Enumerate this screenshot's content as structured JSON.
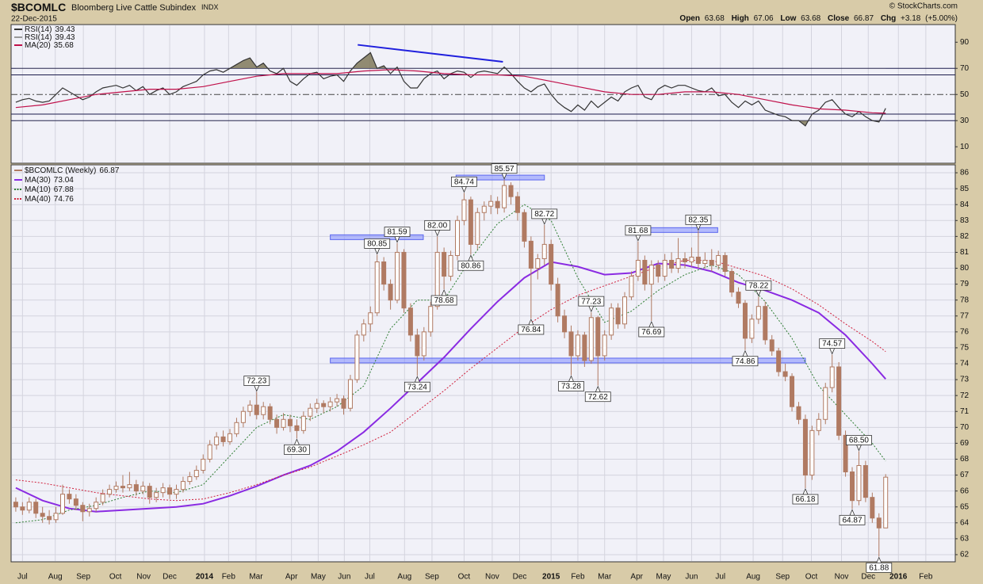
{
  "chart_data": {
    "type": "candlestick",
    "symbol": "$BCOMLC",
    "title": "Bloomberg Live Cattle Subindex",
    "exchange": "INDX",
    "date": "22-Dec-2015",
    "credit": "© StockCharts.com",
    "quote_labels": [
      "Open",
      "High",
      "Low",
      "Close",
      "Chg"
    ],
    "change": {
      "value": 3.18,
      "label": "+3.18"
    },
    "change_pct": {
      "value": 5.0,
      "label": "(+5.00%)"
    },
    "name": "$BCOMLC (Weekly)",
    "color": "#b07a62",
    "xlim": [
      -0.7,
      140.4
    ],
    "xticks": [
      {
        "value": 1,
        "label": "Jul"
      },
      {
        "value": 5.9,
        "label": "Aug"
      },
      {
        "value": 10.1,
        "label": "Sep"
      },
      {
        "value": 14.9,
        "label": "Oct"
      },
      {
        "value": 19.1,
        "label": "Nov"
      },
      {
        "value": 23,
        "label": "Dec"
      },
      {
        "value": 28.2,
        "label": "2014"
      },
      {
        "value": 31.8,
        "label": "Feb"
      },
      {
        "value": 35.9,
        "label": "Mar"
      },
      {
        "value": 41.2,
        "label": "Apr"
      },
      {
        "value": 45.2,
        "label": "May"
      },
      {
        "value": 49.1,
        "label": "Jun"
      },
      {
        "value": 52.9,
        "label": "Jul"
      },
      {
        "value": 58.1,
        "label": "Aug"
      },
      {
        "value": 62.2,
        "label": "Sep"
      },
      {
        "value": 67,
        "label": "Oct"
      },
      {
        "value": 71.2,
        "label": "Nov"
      },
      {
        "value": 75.3,
        "label": "Dec"
      },
      {
        "value": 80,
        "label": "2015"
      },
      {
        "value": 84,
        "label": "Feb"
      },
      {
        "value": 88,
        "label": "Mar"
      },
      {
        "value": 92.8,
        "label": "Apr"
      },
      {
        "value": 96.8,
        "label": "May"
      },
      {
        "value": 101,
        "label": "Jun"
      },
      {
        "value": 105.3,
        "label": "Jul"
      },
      {
        "value": 110.2,
        "label": "Aug"
      },
      {
        "value": 114.6,
        "label": "Sep"
      },
      {
        "value": 118.9,
        "label": "Oct"
      },
      {
        "value": 123.4,
        "label": "Nov"
      },
      {
        "value": 127.4,
        "label": "Dec"
      },
      {
        "value": 131.9,
        "label": "2016"
      },
      {
        "value": 136,
        "label": "Feb"
      }
    ],
    "ylim": [
      61.55,
      86.5
    ],
    "yticks": [
      62,
      63,
      64,
      65,
      66,
      67,
      68,
      69,
      70,
      71,
      72,
      73,
      74,
      75,
      76,
      77,
      78,
      79,
      80,
      81,
      82,
      83,
      84,
      85,
      86
    ],
    "ohlc": [
      [
        65.3,
        65.6,
        64.7,
        65.0
      ],
      [
        65.0,
        65.3,
        64.5,
        64.8
      ],
      [
        64.8,
        65.6,
        64.6,
        65.3
      ],
      [
        65.3,
        65.5,
        64.3,
        64.6
      ],
      [
        64.6,
        65.0,
        64.0,
        64.4
      ],
      [
        64.4,
        64.8,
        63.9,
        64.2
      ],
      [
        64.2,
        65.0,
        64.0,
        64.6
      ],
      [
        64.6,
        66.4,
        64.5,
        65.8
      ],
      [
        65.8,
        66.1,
        65.2,
        65.5
      ],
      [
        65.5,
        65.8,
        64.8,
        65.1
      ],
      [
        65.1,
        65.3,
        64.1,
        64.7
      ],
      [
        64.7,
        65.2,
        64.4,
        64.9
      ],
      [
        64.9,
        65.6,
        64.7,
        65.3
      ],
      [
        65.3,
        66.1,
        65.1,
        65.8
      ],
      [
        65.8,
        66.4,
        65.6,
        66.1
      ],
      [
        66.1,
        66.6,
        65.9,
        66.3
      ],
      [
        66.3,
        67.0,
        65.9,
        66.2
      ],
      [
        66.2,
        67.2,
        66.0,
        66.4
      ],
      [
        66.4,
        66.7,
        65.7,
        66.0
      ],
      [
        66.0,
        66.6,
        65.8,
        66.3
      ],
      [
        66.3,
        66.5,
        65.2,
        65.6
      ],
      [
        65.6,
        66.2,
        65.3,
        65.9
      ],
      [
        65.9,
        66.5,
        65.6,
        66.2
      ],
      [
        66.2,
        66.4,
        65.5,
        65.8
      ],
      [
        65.8,
        66.4,
        65.5,
        66.1
      ],
      [
        66.1,
        66.9,
        65.9,
        66.6
      ],
      [
        66.6,
        67.2,
        66.4,
        66.9
      ],
      [
        66.9,
        67.6,
        66.7,
        67.3
      ],
      [
        67.3,
        68.3,
        67.1,
        68.0
      ],
      [
        68.0,
        69.2,
        67.8,
        68.9
      ],
      [
        68.9,
        69.7,
        68.6,
        69.4
      ],
      [
        69.4,
        69.8,
        68.8,
        69.1
      ],
      [
        69.1,
        69.9,
        68.9,
        69.6
      ],
      [
        69.6,
        70.6,
        69.4,
        70.3
      ],
      [
        70.3,
        71.3,
        70.0,
        71.0
      ],
      [
        71.0,
        71.7,
        70.7,
        71.4
      ],
      [
        71.4,
        72.23,
        70.5,
        70.8
      ],
      [
        70.8,
        71.6,
        70.5,
        71.3
      ],
      [
        71.3,
        71.5,
        70.2,
        70.5
      ],
      [
        70.5,
        70.8,
        69.6,
        70.0
      ],
      [
        70.0,
        70.9,
        69.8,
        70.5
      ],
      [
        70.5,
        70.8,
        69.7,
        70.1
      ],
      [
        70.1,
        70.5,
        69.3,
        69.8
      ],
      [
        69.8,
        71.0,
        69.6,
        70.7
      ],
      [
        70.7,
        71.5,
        70.4,
        71.2
      ],
      [
        71.2,
        71.8,
        70.9,
        71.5
      ],
      [
        71.5,
        71.7,
        70.9,
        71.3
      ],
      [
        71.3,
        71.9,
        71.0,
        71.6
      ],
      [
        71.6,
        72.1,
        71.3,
        71.8
      ],
      [
        71.8,
        72.0,
        70.8,
        71.2
      ],
      [
        71.2,
        73.3,
        71.0,
        73.0
      ],
      [
        73.0,
        76.1,
        72.8,
        75.8
      ],
      [
        75.8,
        76.8,
        75.4,
        76.5
      ],
      [
        76.5,
        77.6,
        76.0,
        77.2
      ],
      [
        77.2,
        80.85,
        77.0,
        80.4
      ],
      [
        80.4,
        80.7,
        78.6,
        79.0
      ],
      [
        79.0,
        79.3,
        77.4,
        78.0
      ],
      [
        78.0,
        81.59,
        77.8,
        81.0
      ],
      [
        81.0,
        81.2,
        77.2,
        77.5
      ],
      [
        77.5,
        77.8,
        75.4,
        75.8
      ],
      [
        75.8,
        76.2,
        73.24,
        74.5
      ],
      [
        74.5,
        76.3,
        74.2,
        76.0
      ],
      [
        76.0,
        77.9,
        75.7,
        77.6
      ],
      [
        77.6,
        82.0,
        77.4,
        81.0
      ],
      [
        81.0,
        81.3,
        78.68,
        79.5
      ],
      [
        79.5,
        81.1,
        79.2,
        80.8
      ],
      [
        80.8,
        83.3,
        80.5,
        83.0
      ],
      [
        83.0,
        84.74,
        82.7,
        84.3
      ],
      [
        84.3,
        84.5,
        80.86,
        81.5
      ],
      [
        81.5,
        83.8,
        81.2,
        83.5
      ],
      [
        83.5,
        84.2,
        83.0,
        83.9
      ],
      [
        83.9,
        84.6,
        83.4,
        84.2
      ],
      [
        84.2,
        84.5,
        83.4,
        83.8
      ],
      [
        83.8,
        85.57,
        83.5,
        85.2
      ],
      [
        85.2,
        85.4,
        84.0,
        84.5
      ],
      [
        84.5,
        84.8,
        83.0,
        83.5
      ],
      [
        83.5,
        83.7,
        81.3,
        81.7
      ],
      [
        81.7,
        82.0,
        76.84,
        80.0
      ],
      [
        80.0,
        80.9,
        79.3,
        80.6
      ],
      [
        80.6,
        82.72,
        80.2,
        81.5
      ],
      [
        81.5,
        81.8,
        78.6,
        79.0
      ],
      [
        79.0,
        79.4,
        76.6,
        77.0
      ],
      [
        77.0,
        77.4,
        75.6,
        76.0
      ],
      [
        76.0,
        76.4,
        73.28,
        74.5
      ],
      [
        74.5,
        76.1,
        74.2,
        75.8
      ],
      [
        75.8,
        76.0,
        73.8,
        74.2
      ],
      [
        74.2,
        77.23,
        74.0,
        76.9
      ],
      [
        76.9,
        77.0,
        72.62,
        74.5
      ],
      [
        74.5,
        76.1,
        74.2,
        75.8
      ],
      [
        75.8,
        77.8,
        75.5,
        77.5
      ],
      [
        77.5,
        77.8,
        76.2,
        76.5
      ],
      [
        76.5,
        78.5,
        76.2,
        78.2
      ],
      [
        78.2,
        79.8,
        78.0,
        79.5
      ],
      [
        79.5,
        81.68,
        79.2,
        80.5
      ],
      [
        80.5,
        80.8,
        78.6,
        79.0
      ],
      [
        79.0,
        80.5,
        76.69,
        80.2
      ],
      [
        80.2,
        80.5,
        79.1,
        79.5
      ],
      [
        79.5,
        80.9,
        79.2,
        80.5
      ],
      [
        80.5,
        81.0,
        79.7,
        80.0
      ],
      [
        80.0,
        81.9,
        79.7,
        80.6
      ],
      [
        80.6,
        81.0,
        80.0,
        80.4
      ],
      [
        80.4,
        81.3,
        80.1,
        80.7
      ],
      [
        80.7,
        82.35,
        80.0,
        80.3
      ],
      [
        80.3,
        81.0,
        80.0,
        80.5
      ],
      [
        80.5,
        81.2,
        79.8,
        80.2
      ],
      [
        80.2,
        81.1,
        79.9,
        80.8
      ],
      [
        80.8,
        81.0,
        79.5,
        79.8
      ],
      [
        79.8,
        80.0,
        78.2,
        78.5
      ],
      [
        78.5,
        78.8,
        77.5,
        77.8
      ],
      [
        77.8,
        78.0,
        74.86,
        75.6
      ],
      [
        75.6,
        77.1,
        75.3,
        76.8
      ],
      [
        76.8,
        78.22,
        76.5,
        77.6
      ],
      [
        77.6,
        77.9,
        75.2,
        75.5
      ],
      [
        75.5,
        75.8,
        74.5,
        74.8
      ],
      [
        74.8,
        75.0,
        73.2,
        73.5
      ],
      [
        73.5,
        74.0,
        72.9,
        73.2
      ],
      [
        73.2,
        73.4,
        71.0,
        71.3
      ],
      [
        71.3,
        71.6,
        70.2,
        70.5
      ],
      [
        70.5,
        70.8,
        66.18,
        67.0
      ],
      [
        67.0,
        70.1,
        66.7,
        69.8
      ],
      [
        69.8,
        70.9,
        69.5,
        70.5
      ],
      [
        70.5,
        72.8,
        70.2,
        72.5
      ],
      [
        72.5,
        74.57,
        72.2,
        73.8
      ],
      [
        73.8,
        74.1,
        69.2,
        69.5
      ],
      [
        69.5,
        69.8,
        66.9,
        67.2
      ],
      [
        67.2,
        67.5,
        64.87,
        65.4
      ],
      [
        65.4,
        68.5,
        65.1,
        67.6
      ],
      [
        67.6,
        67.9,
        65.3,
        65.6
      ],
      [
        65.6,
        65.9,
        64.0,
        64.3
      ],
      [
        64.3,
        64.6,
        61.88,
        63.68
      ],
      [
        63.68,
        67.06,
        63.68,
        66.87
      ]
    ],
    "ma_x": [
      0,
      4,
      8,
      12,
      16,
      20,
      24,
      28,
      32,
      36,
      40,
      44,
      48,
      52,
      56,
      60,
      64,
      68,
      72,
      76,
      80,
      84,
      88,
      92,
      96,
      100,
      104,
      108,
      112,
      116,
      120,
      124,
      128,
      130
    ],
    "series": [
      {
        "name": "MA(30)",
        "color": "#8a2be2",
        "dash": false,
        "values": [
          66.2,
          65.4,
          64.9,
          64.7,
          64.8,
          64.9,
          65.0,
          65.2,
          65.7,
          66.3,
          67.0,
          67.6,
          68.5,
          69.7,
          71.2,
          72.8,
          74.4,
          76.2,
          77.9,
          79.4,
          80.4,
          80.1,
          79.6,
          79.7,
          80.3,
          80.2,
          79.8,
          79.1,
          78.6,
          78.0,
          77.2,
          75.8,
          74.0,
          73.04
        ]
      },
      {
        "name": "MA(10)",
        "color": "#2e7d32",
        "dash": true,
        "values": [
          64.0,
          64.2,
          64.8,
          65.1,
          65.6,
          66.0,
          65.9,
          66.4,
          68.2,
          70.0,
          70.8,
          70.5,
          71.3,
          72.6,
          76.2,
          78.0,
          78.0,
          80.6,
          82.8,
          84.0,
          83.0,
          79.4,
          76.6,
          77.3,
          78.6,
          79.6,
          80.2,
          79.6,
          77.9,
          75.6,
          72.6,
          70.8,
          69.0,
          67.88
        ]
      },
      {
        "name": "MA(40)",
        "color": "#d0203c",
        "dash": true,
        "values": [
          66.7,
          66.5,
          66.2,
          65.9,
          65.7,
          65.5,
          65.4,
          65.5,
          65.9,
          66.4,
          67.0,
          67.5,
          68.2,
          68.9,
          69.7,
          71.0,
          72.3,
          73.7,
          75.0,
          76.3,
          77.4,
          78.3,
          78.9,
          79.5,
          80.1,
          80.5,
          80.5,
          80.0,
          79.5,
          78.7,
          77.7,
          76.5,
          75.4,
          74.76
        ]
      }
    ],
    "zones": [
      {
        "x": [
          47,
          60.9
        ],
        "y": 81.95
      },
      {
        "x": [
          65.8,
          79
        ],
        "y": 85.7
      },
      {
        "x": [
          93,
          104.9
        ],
        "y": 82.4
      },
      {
        "x": [
          47,
          118
        ],
        "y": 74.2
      }
    ],
    "annotations": [
      {
        "x": 36,
        "y": 72.23,
        "label": "72.23"
      },
      {
        "x": 42,
        "y": 69.3,
        "label": "69.30"
      },
      {
        "x": 54,
        "y": 80.85,
        "label": "80.85"
      },
      {
        "x": 57,
        "y": 81.59,
        "label": "81.59"
      },
      {
        "x": 60,
        "y": 73.24,
        "label": "73.24"
      },
      {
        "x": 63,
        "y": 82,
        "label": "82.00"
      },
      {
        "x": 64,
        "y": 78.68,
        "label": "78.68"
      },
      {
        "x": 67,
        "y": 84.74,
        "label": "84.74"
      },
      {
        "x": 68,
        "y": 80.86,
        "label": "80.86"
      },
      {
        "x": 73,
        "y": 85.57,
        "label": "85.57"
      },
      {
        "x": 77,
        "y": 76.84,
        "label": "76.84"
      },
      {
        "x": 79,
        "y": 82.72,
        "label": "82.72"
      },
      {
        "x": 83,
        "y": 73.28,
        "label": "73.28"
      },
      {
        "x": 86,
        "y": 77.23,
        "label": "77.23"
      },
      {
        "x": 87,
        "y": 72.62,
        "label": "72.62"
      },
      {
        "x": 93,
        "y": 81.68,
        "label": "81.68"
      },
      {
        "x": 95,
        "y": 76.69,
        "label": "76.69"
      },
      {
        "x": 102,
        "y": 82.35,
        "label": "82.35"
      },
      {
        "x": 109,
        "y": 74.86,
        "label": "74.86"
      },
      {
        "x": 111,
        "y": 78.22,
        "label": "78.22"
      },
      {
        "x": 118,
        "y": 66.18,
        "label": "66.18"
      },
      {
        "x": 122,
        "y": 74.57,
        "label": "74.57"
      },
      {
        "x": 125,
        "y": 64.87,
        "label": "64.87"
      },
      {
        "x": 126,
        "y": 68.5,
        "label": "68.50"
      },
      {
        "x": 129,
        "y": 61.88,
        "label": "61.88"
      }
    ],
    "rsi": {
      "name": "RSI(14)",
      "color": "#333333",
      "fill": "#80795a",
      "ylim": [
        -2.6,
        103.5
      ],
      "yticks": [
        10,
        30,
        50,
        70,
        90
      ],
      "ref_lines": [
        30,
        35,
        65,
        70
      ],
      "mid_line": 50,
      "values": [
        44,
        46,
        47,
        45,
        44,
        45,
        50,
        55,
        52,
        49,
        46,
        48,
        52,
        55,
        56,
        57,
        55,
        57,
        53,
        56,
        50,
        53,
        55,
        50,
        52,
        56,
        58,
        60,
        65,
        68,
        69,
        67,
        70,
        73,
        76,
        78,
        71,
        74,
        68,
        66,
        70,
        60,
        57,
        62,
        66,
        67,
        62,
        64,
        65,
        60,
        68,
        74,
        78,
        82,
        70,
        72,
        66,
        71,
        60,
        55,
        55,
        62,
        66,
        68,
        62,
        66,
        68,
        67,
        63,
        67,
        68,
        67,
        66,
        71,
        66,
        60,
        55,
        52,
        56,
        58,
        50,
        44,
        40,
        37,
        42,
        38,
        45,
        40,
        44,
        48,
        45,
        52,
        55,
        57,
        48,
        46,
        54,
        57,
        55,
        57,
        57,
        55,
        53,
        52,
        55,
        49,
        50,
        44,
        40,
        45,
        42,
        45,
        38,
        36,
        34,
        33,
        30,
        30,
        26,
        35,
        38,
        44,
        46,
        40,
        35,
        33,
        37,
        33,
        30,
        29,
        39.43
      ],
      "ma": {
        "name": "MA(20)",
        "color": "#c0104a",
        "values": [
          40,
          42,
          46,
          50,
          52,
          54,
          54,
          56,
          60,
          64,
          66,
          66,
          66,
          68,
          69,
          68,
          66,
          65,
          65,
          64,
          60,
          56,
          52,
          50,
          50,
          52,
          52,
          50,
          46,
          42,
          39,
          38,
          36,
          35.68
        ]
      },
      "trendline": {
        "x": [
          51.1,
          72.8
        ],
        "y": [
          88,
          75
        ],
        "color": "#1f1fdd"
      }
    }
  }
}
